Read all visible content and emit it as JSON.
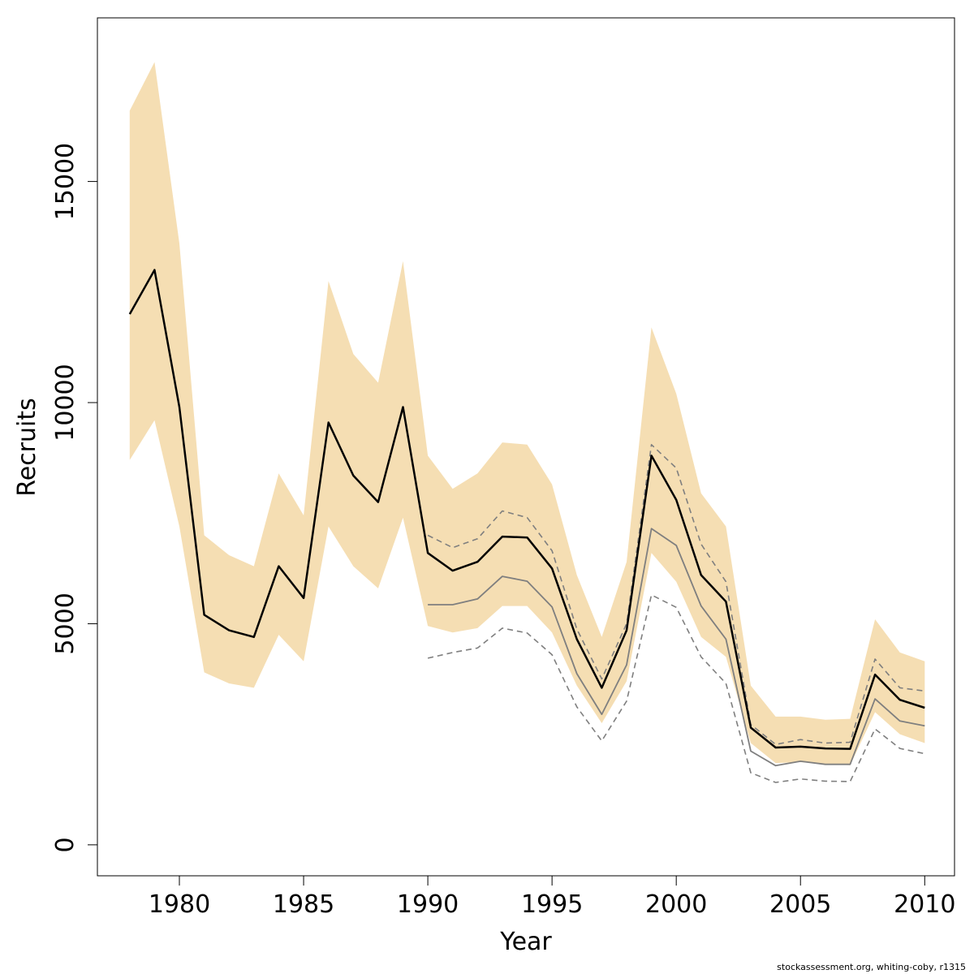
{
  "chart_data": {
    "type": "line",
    "xlabel": "Year",
    "ylabel": "Recruits",
    "xlim": [
      1976.7,
      2011.2
    ],
    "ylim": [
      -700,
      18700
    ],
    "x_ticks": [
      1980,
      1985,
      1990,
      1995,
      2000,
      2005,
      2010
    ],
    "y_ticks": [
      0,
      5000,
      10000,
      15000
    ],
    "grid": false,
    "legend": "none",
    "colors": {
      "band": "#f5deb3",
      "main_line": "#000000",
      "secondary_line": "#7f7f7f",
      "secondary_dashed": "#7f7f7f"
    },
    "bands": [
      {
        "x": [
          1978,
          1979,
          1980,
          1981,
          1982,
          1983,
          1984,
          1985,
          1986,
          1987,
          1988,
          1989,
          1990,
          1991,
          1992,
          1993,
          1994,
          1995,
          1996,
          1997,
          1998,
          1999,
          2000,
          2001,
          2002,
          2003,
          2004,
          2005,
          2006,
          2007,
          2008,
          2009,
          2010
        ],
        "lower": [
          8700,
          9600,
          7200,
          3900,
          3650,
          3550,
          4750,
          4150,
          7200,
          6300,
          5800,
          7400,
          4950,
          4800,
          4900,
          5400,
          5400,
          4800,
          3600,
          2750,
          3700,
          6600,
          5950,
          4700,
          4250,
          2300,
          1850,
          1870,
          1830,
          1800,
          3000,
          2500,
          2300
        ],
        "upper": [
          16600,
          17700,
          13600,
          7000,
          6550,
          6300,
          8400,
          7450,
          12750,
          11100,
          10450,
          13200,
          8800,
          8050,
          8400,
          9100,
          9050,
          8150,
          6100,
          4700,
          6400,
          11700,
          10200,
          7950,
          7200,
          3600,
          2900,
          2900,
          2830,
          2850,
          5100,
          4350,
          4150
        ]
      }
    ],
    "series": [
      {
        "style": "solid-black",
        "x": [
          1978,
          1979,
          1980,
          1981,
          1982,
          1983,
          1984,
          1985,
          1986,
          1987,
          1988,
          1989,
          1990,
          1991,
          1992,
          1993,
          1994,
          1995,
          1996,
          1997,
          1998,
          1999,
          2000,
          2001,
          2002,
          2003,
          2004,
          2005,
          2006,
          2007,
          2008,
          2009,
          2010
        ],
        "values": [
          12000,
          13000,
          9900,
          5200,
          4850,
          4700,
          6300,
          5580,
          9550,
          8350,
          7750,
          9900,
          6600,
          6200,
          6400,
          6970,
          6950,
          6250,
          4650,
          3550,
          4850,
          8800,
          7800,
          6100,
          5500,
          2650,
          2200,
          2220,
          2180,
          2170,
          3850,
          3280,
          3100
        ]
      },
      {
        "style": "solid-grey",
        "x": [
          1990,
          1991,
          1992,
          1993,
          1994,
          1995,
          1996,
          1997,
          1998,
          1999,
          2000,
          2001,
          2002,
          2003,
          2004,
          2005,
          2006,
          2007,
          2008,
          2009,
          2010
        ],
        "values": [
          5430,
          5430,
          5560,
          6070,
          5960,
          5380,
          3870,
          2950,
          4070,
          7150,
          6770,
          5400,
          4650,
          2120,
          1790,
          1890,
          1820,
          1820,
          3300,
          2800,
          2690
        ]
      },
      {
        "style": "dashed-grey",
        "x": [
          1990,
          1991,
          1992,
          1993,
          1994,
          1995,
          1996,
          1997,
          1998,
          1999,
          2000,
          2001,
          2002,
          2003,
          2004,
          2005,
          2006,
          2007,
          2008,
          2009,
          2010
        ],
        "values": [
          7000,
          6720,
          6920,
          7550,
          7400,
          6650,
          4880,
          3750,
          5000,
          9050,
          8520,
          6800,
          5950,
          2720,
          2270,
          2380,
          2300,
          2320,
          4200,
          3550,
          3480
        ]
      },
      {
        "style": "dashed-grey",
        "x": [
          1990,
          1991,
          1992,
          1993,
          1994,
          1995,
          1996,
          1997,
          1998,
          1999,
          2000,
          2001,
          2002,
          2003,
          2004,
          2005,
          2006,
          2007,
          2008,
          2009,
          2010
        ],
        "values": [
          4220,
          4350,
          4450,
          4900,
          4790,
          4300,
          3120,
          2350,
          3250,
          5650,
          5370,
          4250,
          3650,
          1630,
          1410,
          1490,
          1440,
          1430,
          2620,
          2180,
          2060
        ]
      }
    ]
  },
  "footer": {
    "credit": "stockassessment.org, whiting-coby, r1315"
  }
}
